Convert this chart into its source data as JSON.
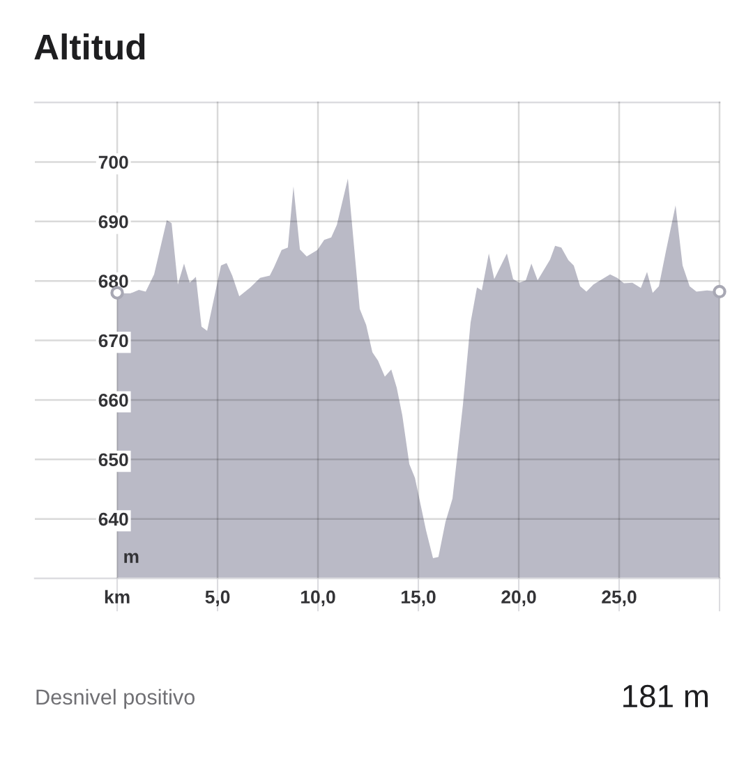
{
  "chart_data": {
    "type": "area",
    "title": "Altitud",
    "ylabel": "m",
    "x": [
      0,
      0.73,
      1.08,
      1.42,
      1.84,
      2.47,
      2.71,
      3.02,
      3.33,
      3.61,
      3.92,
      4.2,
      4.48,
      5.17,
      5.45,
      5.73,
      6.08,
      6.63,
      7.12,
      7.6,
      7.81,
      8.19,
      8.5,
      8.78,
      9.1,
      9.44,
      9.97,
      10.31,
      10.66,
      10.94,
      11.49,
      12.08,
      12.4,
      12.71,
      12.99,
      13.33,
      13.65,
      13.92,
      14.2,
      14.55,
      14.83,
      15.38,
      15.73,
      16.0,
      16.35,
      16.7,
      17.22,
      17.6,
      17.92,
      18.16,
      18.51,
      18.78,
      19.41,
      19.72,
      20.03,
      20.35,
      20.63,
      20.94,
      21.56,
      21.81,
      22.12,
      22.47,
      22.74,
      23.06,
      23.37,
      23.72,
      24.06,
      24.55,
      24.9,
      25.24,
      25.66,
      26.08,
      26.39,
      26.67,
      26.98,
      27.33,
      27.81,
      28.16,
      28.51,
      28.85,
      29.38,
      30.0
    ],
    "series": [
      {
        "color": "#babac6",
        "values": [
          678,
          678,
          678.5,
          678.2,
          681.1,
          690.2,
          689.7,
          679.4,
          682.9,
          679.7,
          680.7,
          672.3,
          671.6,
          682.6,
          683,
          680.9,
          677.4,
          678.9,
          680.5,
          680.9,
          682.3,
          685.2,
          685.6,
          695.9,
          685.3,
          684.1,
          685.2,
          686.9,
          687.3,
          689.4,
          697.2,
          675.3,
          672.6,
          668,
          666.6,
          663.9,
          665.1,
          662.1,
          657.4,
          649.2,
          646.9,
          638.1,
          633.4,
          633.6,
          639.5,
          643.4,
          659.2,
          673,
          678.9,
          678.4,
          684.6,
          680.3,
          684.6,
          680.3,
          679.7,
          680.1,
          682.9,
          680.1,
          683.6,
          685.9,
          685.6,
          683.5,
          682.6,
          679.1,
          678.2,
          679.4,
          680.1,
          681.1,
          680.5,
          679.6,
          679.7,
          678.8,
          681.5,
          678,
          679.1,
          685,
          692.7,
          682.6,
          679.1,
          678.2,
          678.4,
          678.2
        ]
      },
      {
        "type": "scatter",
        "x": [
          0,
          30
        ],
        "values": [
          678,
          678.2
        ],
        "color": "#ffffff",
        "marker": "circle"
      }
    ],
    "xlim": [
      -4.1,
      30
    ],
    "ylim": [
      630,
      710
    ],
    "xticks": [
      {
        "value": 0,
        "label": "km"
      },
      {
        "value": 5,
        "label": "5,0"
      },
      {
        "value": 10,
        "label": "10,0"
      },
      {
        "value": 15,
        "label": "15,0"
      },
      {
        "value": 20,
        "label": "20,0"
      },
      {
        "value": 25,
        "label": "25,0"
      },
      {
        "value": 30,
        "label": null
      }
    ],
    "yticks": [
      640,
      650,
      660,
      670,
      680,
      690,
      700
    ],
    "grid": true,
    "annotations": [
      "Desnivel positivo",
      "181 m"
    ]
  }
}
